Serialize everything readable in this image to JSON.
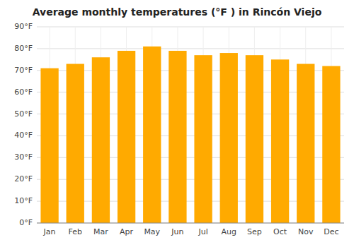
{
  "chart_data": {
    "type": "bar",
    "title": "Average monthly temperatures (°F ) in Rincón Viejo",
    "categories": [
      "Jan",
      "Feb",
      "Mar",
      "Apr",
      "May",
      "Jun",
      "Jul",
      "Aug",
      "Sep",
      "Oct",
      "Nov",
      "Dec"
    ],
    "values": [
      71,
      73,
      76,
      79,
      81,
      79,
      77,
      78,
      77,
      75,
      73,
      72
    ],
    "color": "#FFAA00",
    "ylim": [
      0,
      90
    ],
    "yticks": [
      {
        "value": 0,
        "label": "0°F"
      },
      {
        "value": 10,
        "label": "10°F"
      },
      {
        "value": 20,
        "label": "20°F"
      },
      {
        "value": 30,
        "label": "30°F"
      },
      {
        "value": 40,
        "label": "40°F"
      },
      {
        "value": 50,
        "label": "50°F"
      },
      {
        "value": 60,
        "label": "60°F"
      },
      {
        "value": 70,
        "label": "70°F"
      },
      {
        "value": 80,
        "label": "80°F"
      },
      {
        "value": 90,
        "label": "90°F"
      }
    ],
    "grid": true
  }
}
